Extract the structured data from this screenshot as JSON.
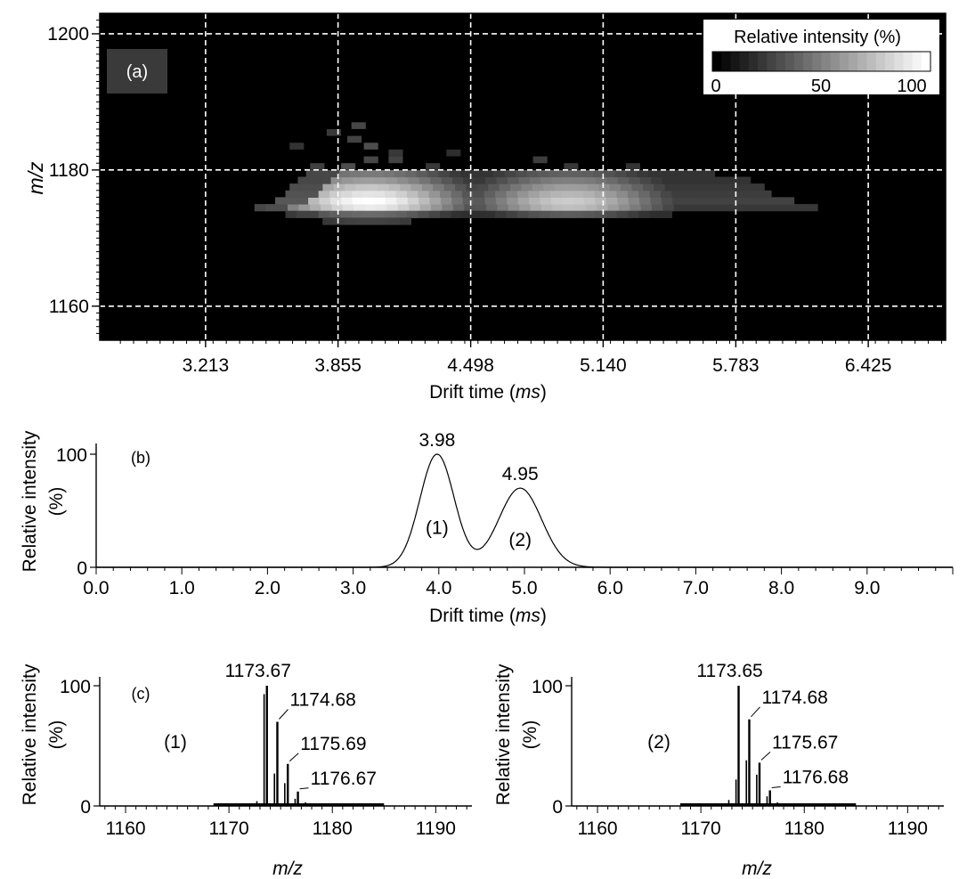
{
  "chart_data": [
    {
      "id": "a",
      "type": "heatmap",
      "panel_label": "(a)",
      "xlabel_prefix": "Drift time (",
      "xlabel_unit": "ms",
      "xlabel_suffix": ")",
      "ylabel": "m/z",
      "xlim": [
        2.7,
        6.8
      ],
      "ylim": [
        1155,
        1203
      ],
      "xticks": [
        3.213,
        3.855,
        4.498,
        5.14,
        5.783,
        6.425
      ],
      "xtick_labels": [
        "3.213",
        "3.855",
        "4.498",
        "5.140",
        "5.783",
        "6.425"
      ],
      "yticks": [
        1160,
        1180,
        1200
      ],
      "ytick_labels": [
        "1160",
        "1180",
        "1200"
      ],
      "grid": true,
      "colorbar": {
        "title": "Relative intensity (%)",
        "tick_labels": [
          "0",
          "50",
          "100"
        ],
        "range": [
          0,
          100
        ]
      },
      "bands": [
        {
          "mz": 1174.5,
          "x_start": 3.45,
          "x_end": 6.15,
          "peaks": [
            {
              "x": 3.98,
              "v": 92
            },
            {
              "x": 4.95,
              "v": 75
            }
          ],
          "base": 22
        },
        {
          "mz": 1175.5,
          "x_start": 3.55,
          "x_end": 6.05,
          "peaks": [
            {
              "x": 3.98,
              "v": 100
            },
            {
              "x": 4.95,
              "v": 80
            }
          ],
          "base": 26
        },
        {
          "mz": 1176.5,
          "x_start": 3.6,
          "x_end": 5.95,
          "peaks": [
            {
              "x": 3.98,
              "v": 90
            },
            {
              "x": 4.95,
              "v": 72
            }
          ],
          "base": 24
        },
        {
          "mz": 1177.5,
          "x_start": 3.62,
          "x_end": 5.9,
          "peaks": [
            {
              "x": 3.98,
              "v": 78
            },
            {
              "x": 4.95,
              "v": 62
            }
          ],
          "base": 22
        },
        {
          "mz": 1178.5,
          "x_start": 3.66,
          "x_end": 5.8,
          "peaks": [
            {
              "x": 3.98,
              "v": 62
            },
            {
              "x": 4.95,
              "v": 50
            }
          ],
          "base": 20
        },
        {
          "mz": 1179.5,
          "x_start": 3.7,
          "x_end": 5.65,
          "peaks": [
            {
              "x": 3.98,
              "v": 48
            },
            {
              "x": 4.95,
              "v": 38
            }
          ],
          "base": 20
        },
        {
          "mz": 1173.5,
          "x_start": 3.6,
          "x_end": 5.45,
          "peaks": [
            {
              "x": 3.98,
              "v": 42
            },
            {
              "x": 4.95,
              "v": 36
            }
          ],
          "base": 18
        },
        {
          "mz": 1172.5,
          "x_start": 3.78,
          "x_end": 4.18,
          "peaks": [
            {
              "x": 3.98,
              "v": 26
            }
          ],
          "base": 20
        }
      ],
      "speckles": [
        {
          "x": 3.72,
          "mz": 1180.5,
          "v": 25
        },
        {
          "x": 3.87,
          "mz": 1180.5,
          "v": 30
        },
        {
          "x": 3.98,
          "mz": 1181.5,
          "v": 28
        },
        {
          "x": 4.1,
          "mz": 1181.5,
          "v": 26
        },
        {
          "x": 4.28,
          "mz": 1180.5,
          "v": 22
        },
        {
          "x": 4.8,
          "mz": 1181.5,
          "v": 24
        },
        {
          "x": 4.95,
          "mz": 1180.5,
          "v": 22
        },
        {
          "x": 5.25,
          "mz": 1180.5,
          "v": 20
        },
        {
          "x": 3.98,
          "mz": 1183.5,
          "v": 30
        },
        {
          "x": 3.9,
          "mz": 1184.5,
          "v": 26
        },
        {
          "x": 4.1,
          "mz": 1182.5,
          "v": 22
        },
        {
          "x": 3.92,
          "mz": 1186.5,
          "v": 28
        },
        {
          "x": 3.8,
          "mz": 1185.5,
          "v": 22
        },
        {
          "x": 3.62,
          "mz": 1183.5,
          "v": 20
        },
        {
          "x": 4.38,
          "mz": 1182.5,
          "v": 18
        }
      ]
    },
    {
      "id": "b",
      "type": "line",
      "panel_label": "(b)",
      "xlabel_prefix": "Drift time (",
      "xlabel_unit": "ms",
      "xlabel_suffix": ")",
      "ylabel_line1": "Relative intensity",
      "ylabel_line2": "(%)",
      "xlim": [
        0,
        10
      ],
      "ylim": [
        0,
        100
      ],
      "xticks": [
        0,
        1,
        2,
        3,
        4,
        5,
        6,
        7,
        8,
        9
      ],
      "xtick_labels": [
        "0.0",
        "1.0",
        "2.0",
        "3.0",
        "4.0",
        "5.0",
        "6.0",
        "7.0",
        "8.0",
        "9.0"
      ],
      "yticks": [
        0,
        100
      ],
      "ytick_labels": [
        "0",
        "100"
      ],
      "peaks": [
        {
          "x": 3.98,
          "height": 100,
          "sigma": 0.2,
          "label": "3.98",
          "name": "(1)"
        },
        {
          "x": 4.95,
          "height": 70,
          "sigma": 0.25,
          "label": "4.95",
          "name": "(2)"
        }
      ]
    },
    {
      "id": "c1",
      "type": "bar",
      "panel_label": "(c)",
      "trace_name": "(1)",
      "xlabel": "m/z",
      "ylabel_line1": "Relative intensity",
      "ylabel_line2": "(%)",
      "xlim": [
        1157.5,
        1193.5
      ],
      "ylim": [
        0,
        100
      ],
      "xticks": [
        1160,
        1170,
        1180,
        1190
      ],
      "xtick_labels": [
        "1160",
        "1170",
        "1180",
        "1190"
      ],
      "yticks": [
        0,
        100
      ],
      "ytick_labels": [
        "0",
        "100"
      ],
      "noise_range": [
        1168.5,
        1185.0
      ],
      "peaks": [
        {
          "mz": 1173.67,
          "intensity": 100,
          "label": "1173.67"
        },
        {
          "mz": 1174.68,
          "intensity": 70,
          "label": "1174.68"
        },
        {
          "mz": 1175.69,
          "intensity": 35,
          "label": "1175.69"
        },
        {
          "mz": 1176.67,
          "intensity": 12,
          "label": "1176.67"
        }
      ],
      "minor_peaks": [
        {
          "mz": 1173.4,
          "intensity": 93
        },
        {
          "mz": 1174.4,
          "intensity": 27
        },
        {
          "mz": 1175.4,
          "intensity": 19
        },
        {
          "mz": 1176.4,
          "intensity": 6
        },
        {
          "mz": 1172.7,
          "intensity": 4
        },
        {
          "mz": 1177.4,
          "intensity": 3
        },
        {
          "mz": 1171.9,
          "intensity": 2
        },
        {
          "mz": 1178.3,
          "intensity": 2
        }
      ]
    },
    {
      "id": "c2",
      "type": "bar",
      "trace_name": "(2)",
      "xlabel": "m/z",
      "ylabel_line1": "Relative intensity",
      "ylabel_line2": "(%)",
      "xlim": [
        1157.5,
        1193.5
      ],
      "ylim": [
        0,
        100
      ],
      "xticks": [
        1160,
        1170,
        1180,
        1190
      ],
      "xtick_labels": [
        "1160",
        "1170",
        "1180",
        "1190"
      ],
      "yticks": [
        0,
        100
      ],
      "ytick_labels": [
        "0",
        "100"
      ],
      "noise_range": [
        1168.0,
        1185.0
      ],
      "peaks": [
        {
          "mz": 1173.65,
          "intensity": 100,
          "label": "1173.65"
        },
        {
          "mz": 1174.68,
          "intensity": 72,
          "label": "1174.68"
        },
        {
          "mz": 1175.67,
          "intensity": 36,
          "label": "1175.67"
        },
        {
          "mz": 1176.68,
          "intensity": 13,
          "label": "1176.68"
        }
      ],
      "minor_peaks": [
        {
          "mz": 1173.4,
          "intensity": 22
        },
        {
          "mz": 1174.4,
          "intensity": 38
        },
        {
          "mz": 1175.4,
          "intensity": 26
        },
        {
          "mz": 1176.4,
          "intensity": 8
        },
        {
          "mz": 1172.7,
          "intensity": 5
        },
        {
          "mz": 1177.4,
          "intensity": 3
        },
        {
          "mz": 1171.9,
          "intensity": 2
        },
        {
          "mz": 1178.3,
          "intensity": 2
        }
      ]
    }
  ]
}
